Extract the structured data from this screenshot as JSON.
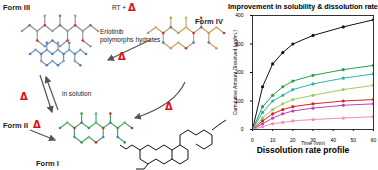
{
  "diagram": {
    "forms": [
      "Form I",
      "Form II",
      "Form III",
      "Form IV"
    ],
    "texts": {
      "hydrates": [
        "Erlotinib",
        "polymorphs hydrates"
      ],
      "rt": "RT +",
      "solution": "in solution",
      "heat": "Δ"
    }
  },
  "chart_data": {
    "type": "line",
    "title": "Improvement in solubility & dissolution rate",
    "caption": "Dissolution rate profile",
    "x_label": "Time (min)",
    "y_label": "Cumulative Amount Dissolved (μg/mL)",
    "x": [
      0,
      5,
      10,
      15,
      20,
      30,
      45,
      60
    ],
    "series": [
      {
        "color": "#111111",
        "values": [
          0,
          150,
          230,
          270,
          300,
          330,
          360,
          385
        ]
      },
      {
        "color": "#2e9e4a",
        "values": [
          0,
          80,
          120,
          150,
          170,
          190,
          210,
          225
        ]
      },
      {
        "color": "#2bb5b0",
        "values": [
          0,
          60,
          100,
          120,
          140,
          160,
          180,
          195
        ]
      },
      {
        "color": "#9acd5a",
        "values": [
          0,
          40,
          70,
          90,
          105,
          120,
          140,
          155
        ]
      },
      {
        "color": "#e02020",
        "values": [
          0,
          30,
          55,
          70,
          80,
          90,
          100,
          105
        ]
      },
      {
        "color": "#c040c0",
        "values": [
          0,
          20,
          40,
          55,
          65,
          75,
          85,
          90
        ]
      },
      {
        "color": "#f090b0",
        "values": [
          0,
          10,
          20,
          25,
          30,
          35,
          40,
          45
        ]
      }
    ],
    "xlim": [
      0,
      60
    ],
    "xticks": [
      0,
      10,
      20,
      30,
      40,
      50,
      60
    ],
    "ylim": [
      0,
      400
    ],
    "yticks": [
      0,
      100,
      200,
      300,
      400
    ],
    "marker": "circle",
    "grid": false
  }
}
